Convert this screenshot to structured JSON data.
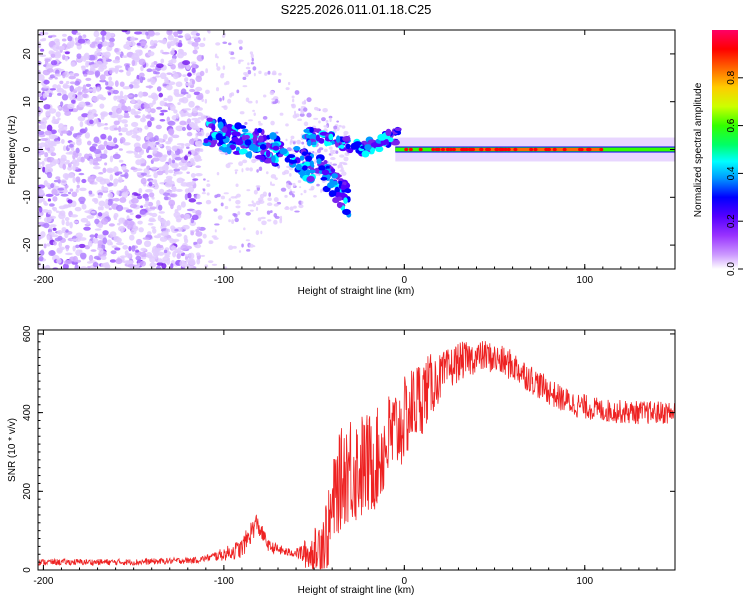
{
  "title": "S225.2026.011.01.18.C25",
  "chart_data": [
    {
      "type": "heatmap",
      "name": "spectrogram",
      "xlabel": "Height of straight line (km)",
      "ylabel": "Frequency (Hz)",
      "xlim": [
        -203,
        150
      ],
      "ylim": [
        -25,
        25
      ],
      "xticks": [
        -200,
        -100,
        0,
        100
      ],
      "yticks": [
        -20,
        -10,
        0,
        10,
        20
      ],
      "colorbar": {
        "label": "Normalized spectral amplitude",
        "range": [
          0,
          1
        ],
        "ticks": [
          0.0,
          0.2,
          0.4,
          0.6,
          0.8
        ],
        "colors": [
          "#ffffff",
          "#cc99ff",
          "#9933ff",
          "#5500ff",
          "#0000ff",
          "#0099ff",
          "#00ffff",
          "#00ff66",
          "#33ff00",
          "#ccff00",
          "#ffcc00",
          "#ff6600",
          "#ff0000",
          "#ff0066"
        ]
      },
      "features": {
        "noise_region_x": [
          -203,
          -112
        ],
        "noise_freq_range": [
          -25,
          25
        ],
        "transition_x": [
          -112,
          -30
        ],
        "stable_line_x": [
          -5,
          150
        ],
        "stable_line_freq": 0,
        "dispersion_arm": [
          [
            -110,
            4
          ],
          [
            -80,
            1
          ],
          [
            -60,
            -2
          ],
          [
            -45,
            -5
          ],
          [
            -30,
            -11
          ]
        ],
        "upper_arm": [
          [
            -55,
            3
          ],
          [
            -40,
            2
          ],
          [
            -25,
            0
          ],
          [
            -10,
            2
          ],
          [
            -3,
            3
          ]
        ]
      }
    },
    {
      "type": "line",
      "name": "snr",
      "xlabel": "Height of straight line (km)",
      "ylabel": "SNR (10 * v/v)",
      "xlim": [
        -203,
        150
      ],
      "ylim": [
        0,
        610
      ],
      "xticks": [
        -200,
        -100,
        0,
        100
      ],
      "yticks": [
        0,
        200,
        400,
        600
      ],
      "color": "#ee2222",
      "trend": [
        [
          -203,
          20
        ],
        [
          -150,
          20
        ],
        [
          -115,
          25
        ],
        [
          -100,
          40
        ],
        [
          -90,
          55
        ],
        [
          -82,
          120
        ],
        [
          -75,
          60
        ],
        [
          -65,
          45
        ],
        [
          -50,
          40
        ],
        [
          -42,
          100
        ],
        [
          -38,
          200
        ],
        [
          -32,
          260
        ],
        [
          -25,
          260
        ],
        [
          -18,
          270
        ],
        [
          -12,
          300
        ],
        [
          -8,
          340
        ],
        [
          -3,
          360
        ],
        [
          0,
          380
        ],
        [
          5,
          420
        ],
        [
          15,
          470
        ],
        [
          30,
          530
        ],
        [
          45,
          545
        ],
        [
          60,
          520
        ],
        [
          75,
          470
        ],
        [
          85,
          440
        ],
        [
          95,
          420
        ],
        [
          110,
          405
        ],
        [
          130,
          400
        ],
        [
          150,
          400
        ]
      ],
      "noise_amp": [
        [
          -203,
          8
        ],
        [
          -110,
          8
        ],
        [
          -85,
          30
        ],
        [
          -75,
          15
        ],
        [
          -60,
          10
        ],
        [
          -45,
          90
        ],
        [
          -30,
          150
        ],
        [
          -10,
          120
        ],
        [
          0,
          110
        ],
        [
          10,
          100
        ],
        [
          20,
          60
        ],
        [
          40,
          40
        ],
        [
          60,
          40
        ],
        [
          80,
          35
        ],
        [
          110,
          30
        ],
        [
          150,
          30
        ]
      ]
    }
  ]
}
